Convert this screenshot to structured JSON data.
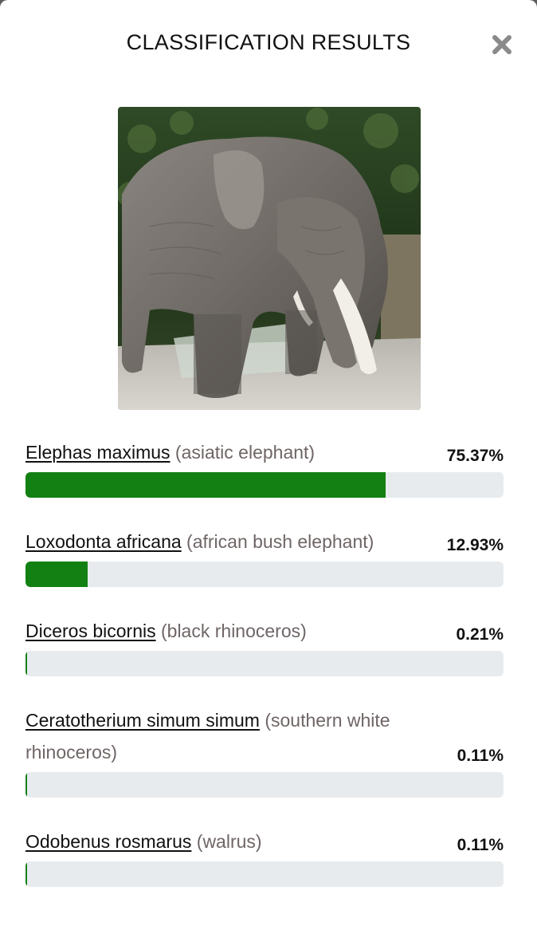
{
  "modal": {
    "title": "CLASSIFICATION RESULTS",
    "close_icon": "close-icon"
  },
  "image": {
    "subject": "elephant photo",
    "kind": "uploaded-photo"
  },
  "colors": {
    "bar_fill": "#128012",
    "bar_track": "#e8ebee",
    "common_name": "#6f6565"
  },
  "results": [
    {
      "scientific": "Elephas maximus",
      "common": "(asiatic elephant)",
      "percent_label": "75.37%",
      "value": 75.37
    },
    {
      "scientific": "Loxodonta africana",
      "common": "(african bush elephant)",
      "percent_label": "12.93%",
      "value": 12.93
    },
    {
      "scientific": "Diceros bicornis",
      "common": "(black rhinoceros)",
      "percent_label": "0.21%",
      "value": 0.21
    },
    {
      "scientific": "Ceratotherium simum simum",
      "common": "(southern white rhinoceros)",
      "percent_label": "0.11%",
      "value": 0.11
    },
    {
      "scientific": "Odobenus rosmarus",
      "common": "(walrus)",
      "percent_label": "0.11%",
      "value": 0.11
    }
  ]
}
